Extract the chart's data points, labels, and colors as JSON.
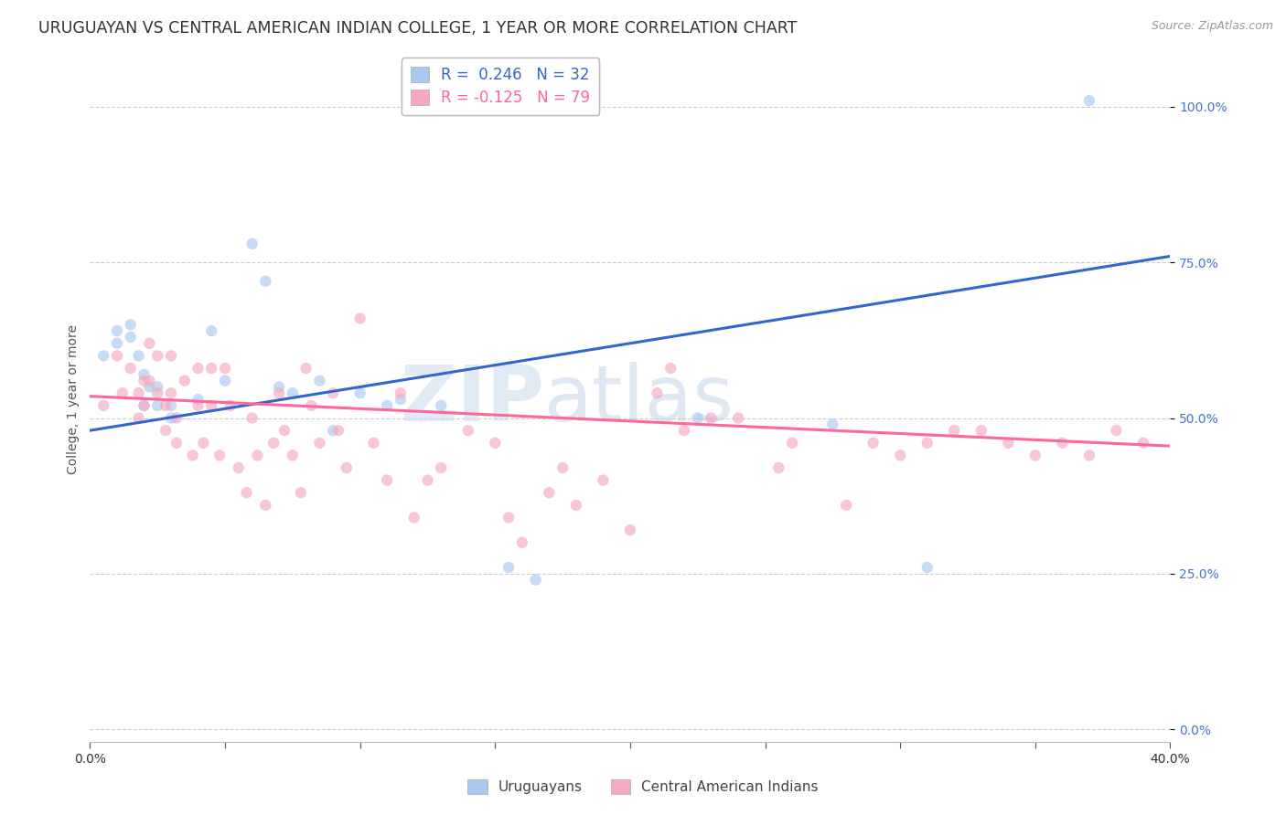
{
  "title": "URUGUAYAN VS CENTRAL AMERICAN INDIAN COLLEGE, 1 YEAR OR MORE CORRELATION CHART",
  "source": "Source: ZipAtlas.com",
  "ylabel": "College, 1 year or more",
  "ytick_values": [
    0.0,
    0.25,
    0.5,
    0.75,
    1.0
  ],
  "ytick_labels": [
    "0.0%",
    "25.0%",
    "50.0%",
    "75.0%",
    "100.0%"
  ],
  "xlim": [
    0.0,
    0.4
  ],
  "ylim": [
    -0.02,
    1.08
  ],
  "legend_blue_R": "R =  0.246",
  "legend_blue_N": "N = 32",
  "legend_pink_R": "R = -0.125",
  "legend_pink_N": "N = 79",
  "legend_label_blue": "Uruguayans",
  "legend_label_pink": "Central American Indians",
  "blue_color": "#A8C8F0",
  "pink_color": "#F5A8C0",
  "line_blue_color": "#3366CC",
  "line_pink_color": "#FF6699",
  "watermark_ZIP": "ZIP",
  "watermark_atlas": "atlas",
  "blue_scatter_x": [
    0.005,
    0.01,
    0.01,
    0.015,
    0.015,
    0.018,
    0.02,
    0.02,
    0.022,
    0.025,
    0.025,
    0.03,
    0.03,
    0.04,
    0.045,
    0.05,
    0.06,
    0.065,
    0.07,
    0.075,
    0.085,
    0.09,
    0.1,
    0.11,
    0.115,
    0.13,
    0.155,
    0.165,
    0.225,
    0.275,
    0.31,
    0.37
  ],
  "blue_scatter_y": [
    0.6,
    0.64,
    0.62,
    0.65,
    0.63,
    0.6,
    0.57,
    0.52,
    0.55,
    0.55,
    0.52,
    0.52,
    0.5,
    0.53,
    0.64,
    0.56,
    0.78,
    0.72,
    0.55,
    0.54,
    0.56,
    0.48,
    0.54,
    0.52,
    0.53,
    0.52,
    0.26,
    0.24,
    0.5,
    0.49,
    0.26,
    1.01
  ],
  "pink_scatter_x": [
    0.005,
    0.01,
    0.012,
    0.015,
    0.018,
    0.018,
    0.02,
    0.02,
    0.022,
    0.022,
    0.025,
    0.025,
    0.028,
    0.028,
    0.03,
    0.03,
    0.032,
    0.032,
    0.035,
    0.038,
    0.04,
    0.04,
    0.042,
    0.045,
    0.045,
    0.048,
    0.05,
    0.052,
    0.055,
    0.058,
    0.06,
    0.062,
    0.065,
    0.068,
    0.07,
    0.072,
    0.075,
    0.078,
    0.08,
    0.082,
    0.085,
    0.09,
    0.092,
    0.095,
    0.1,
    0.105,
    0.11,
    0.115,
    0.12,
    0.125,
    0.13,
    0.14,
    0.15,
    0.155,
    0.16,
    0.17,
    0.175,
    0.18,
    0.19,
    0.2,
    0.21,
    0.215,
    0.22,
    0.23,
    0.24,
    0.255,
    0.26,
    0.28,
    0.29,
    0.3,
    0.31,
    0.32,
    0.33,
    0.34,
    0.35,
    0.36,
    0.37,
    0.38,
    0.39
  ],
  "pink_scatter_y": [
    0.52,
    0.6,
    0.54,
    0.58,
    0.54,
    0.5,
    0.56,
    0.52,
    0.62,
    0.56,
    0.6,
    0.54,
    0.52,
    0.48,
    0.6,
    0.54,
    0.5,
    0.46,
    0.56,
    0.44,
    0.58,
    0.52,
    0.46,
    0.58,
    0.52,
    0.44,
    0.58,
    0.52,
    0.42,
    0.38,
    0.5,
    0.44,
    0.36,
    0.46,
    0.54,
    0.48,
    0.44,
    0.38,
    0.58,
    0.52,
    0.46,
    0.54,
    0.48,
    0.42,
    0.66,
    0.46,
    0.4,
    0.54,
    0.34,
    0.4,
    0.42,
    0.48,
    0.46,
    0.34,
    0.3,
    0.38,
    0.42,
    0.36,
    0.4,
    0.32,
    0.54,
    0.58,
    0.48,
    0.5,
    0.5,
    0.42,
    0.46,
    0.36,
    0.46,
    0.44,
    0.46,
    0.48,
    0.48,
    0.46,
    0.44,
    0.46,
    0.44,
    0.48,
    0.46
  ],
  "blue_line_x0": 0.0,
  "blue_line_x1": 0.4,
  "blue_line_y0": 0.48,
  "blue_line_y1": 0.76,
  "pink_line_x0": 0.0,
  "pink_line_x1": 0.4,
  "pink_line_y0": 0.535,
  "pink_line_y1": 0.455,
  "background_color": "#FFFFFF",
  "grid_color": "#CCCCCC",
  "title_color": "#333333",
  "source_color": "#999999",
  "ytick_color": "#4477CC",
  "title_fontsize": 12.5,
  "source_fontsize": 9,
  "ylabel_fontsize": 10,
  "tick_fontsize": 10,
  "legend_fontsize": 12,
  "scatter_size": 80,
  "scatter_alpha": 0.65,
  "linewidth": 2.2
}
